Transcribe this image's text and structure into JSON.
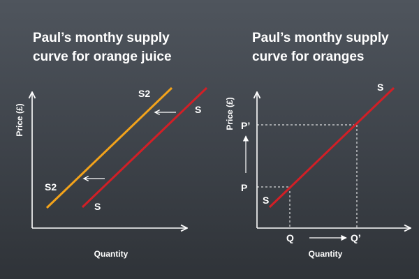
{
  "colors": {
    "background_top": "#4f555d",
    "background_bottom": "#2f3338",
    "axis": "#ffffff",
    "curve_red": "#d21f26",
    "curve_orange": "#f3a31b",
    "guide_dashed": "#ffffff"
  },
  "left_chart": {
    "title_line1": "Paul’s monthy supply",
    "title_line2": "curve for orange juice",
    "y_axis_label": "Price (£)",
    "x_axis_label": "Quantity",
    "curve_s_label_top": "S",
    "curve_s_label_bottom": "S",
    "curve_s2_label_top": "S2",
    "curve_s2_label_bottom": "S2",
    "shift_direction": "left"
  },
  "right_chart": {
    "title_line1": "Paul’s monthy supply",
    "title_line2": "curve for oranges",
    "y_axis_label": "Price (£)",
    "x_axis_label": "Quantity",
    "curve_s_label_top": "S",
    "curve_s_label_bottom": "S",
    "price_low_label": "P",
    "price_high_label": "P’",
    "quantity_low_label": "Q",
    "quantity_high_label": "Q’"
  }
}
